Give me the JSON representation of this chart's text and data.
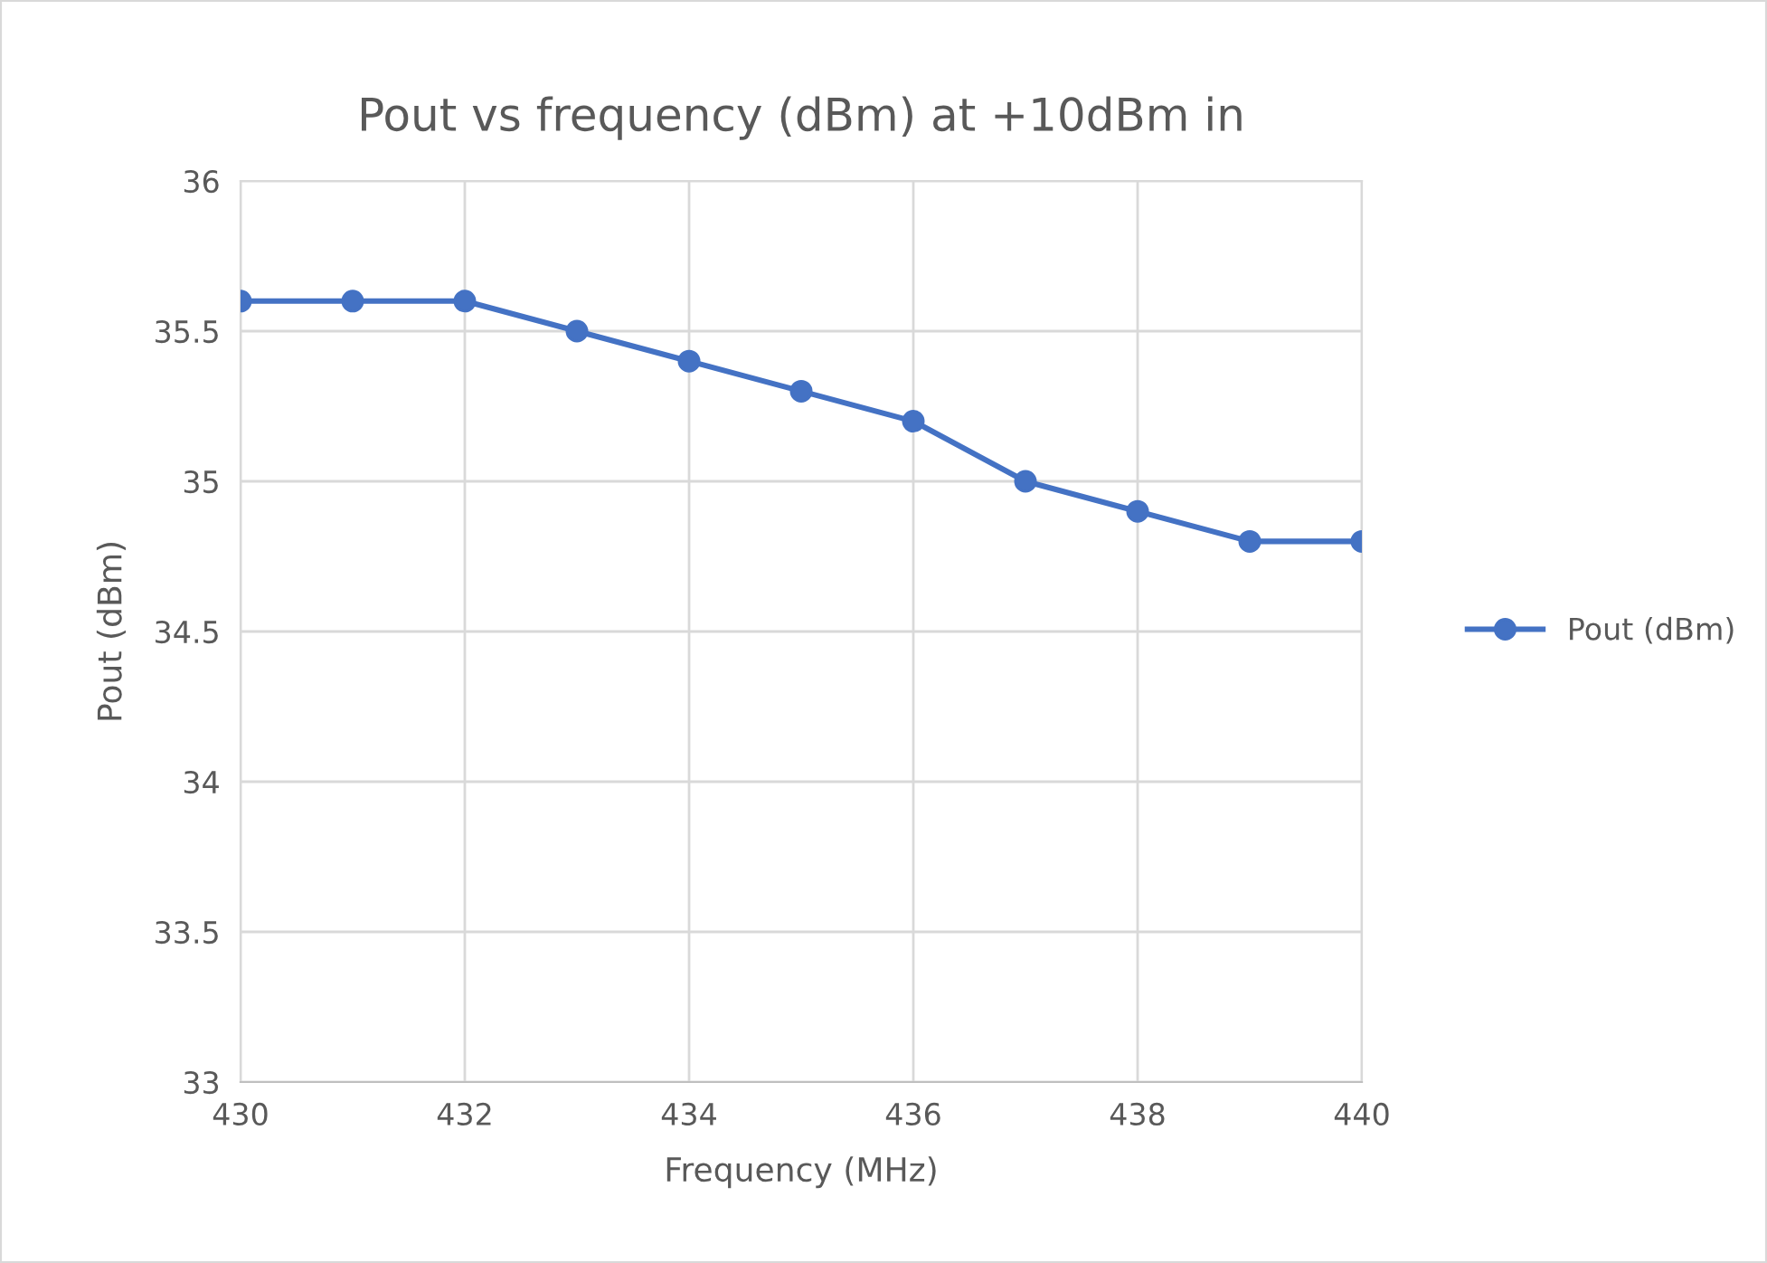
{
  "chart_data": {
    "type": "line",
    "title": "Pout vs frequency (dBm) at +10dBm in",
    "xlabel": "Frequency (MHz)",
    "ylabel": "Pout (dBm)",
    "x": [
      430,
      431,
      432,
      433,
      434,
      435,
      436,
      437,
      438,
      439,
      440
    ],
    "series": [
      {
        "name": "Pout (dBm)",
        "color": "#4472c4",
        "values": [
          35.6,
          35.6,
          35.6,
          35.5,
          35.4,
          35.3,
          35.2,
          35.0,
          34.9,
          34.8,
          34.8
        ]
      }
    ],
    "xlim": [
      430,
      440
    ],
    "xticks": [
      430,
      432,
      434,
      436,
      438,
      440
    ],
    "ylim": [
      33,
      36
    ],
    "yticks": [
      33,
      33.5,
      34,
      34.5,
      35,
      35.5,
      36
    ],
    "grid": true,
    "legend": "right",
    "marker": "circle",
    "line_style": "solid"
  }
}
